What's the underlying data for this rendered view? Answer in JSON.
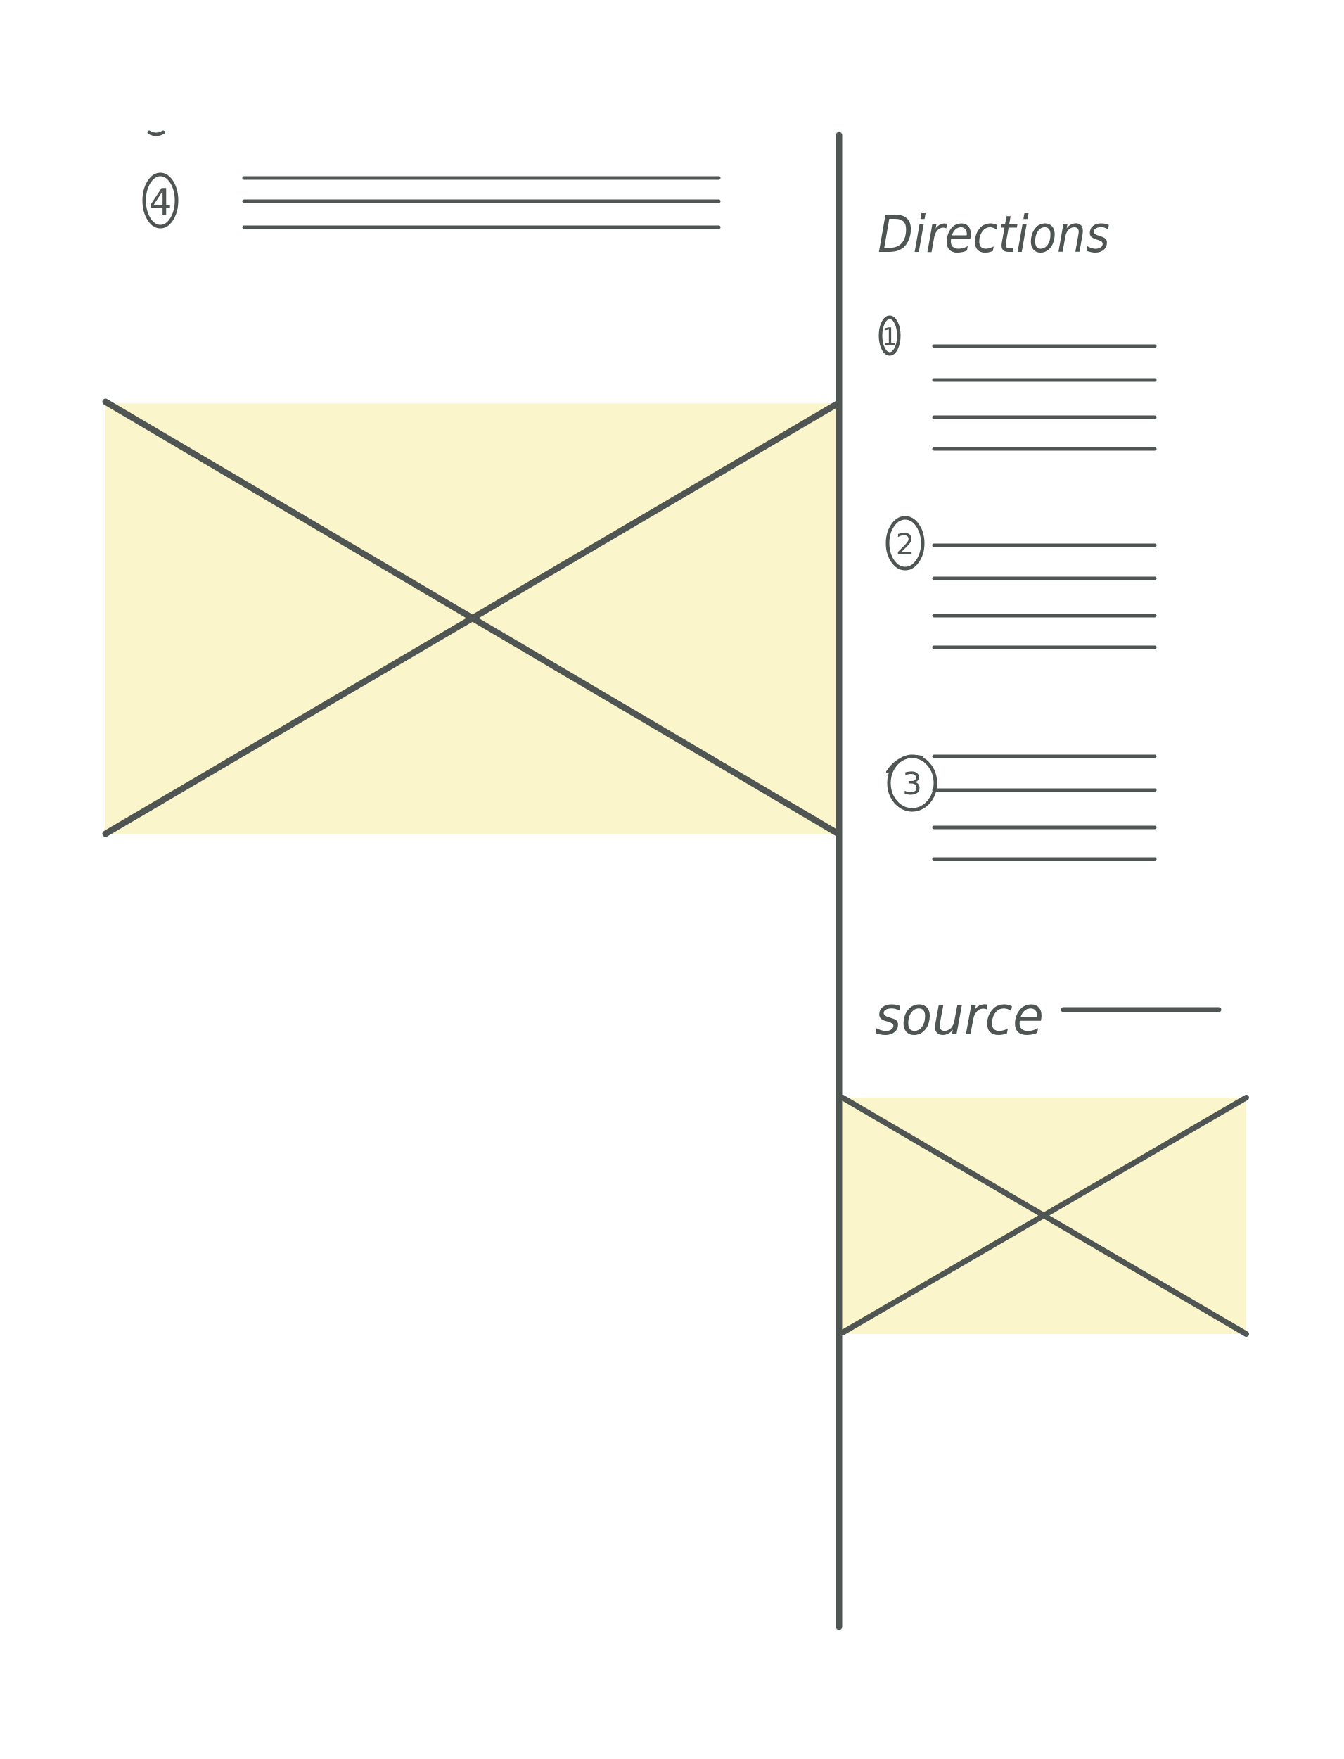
{
  "wireframe": {
    "ink_color": "#4f5553",
    "placeholder_color": "#fbf5cc",
    "left_column": {
      "ingredient_step": {
        "number": "4",
        "line_count": 3
      },
      "main_image": {
        "kind": "image-placeholder"
      }
    },
    "right_column": {
      "directions": {
        "heading": "Directions",
        "steps": [
          {
            "number": "1",
            "line_count": 4
          },
          {
            "number": "2",
            "line_count": 4
          },
          {
            "number": "3",
            "line_count": 4
          }
        ]
      },
      "source": {
        "label": "source"
      },
      "source_image": {
        "kind": "image-placeholder"
      }
    }
  }
}
